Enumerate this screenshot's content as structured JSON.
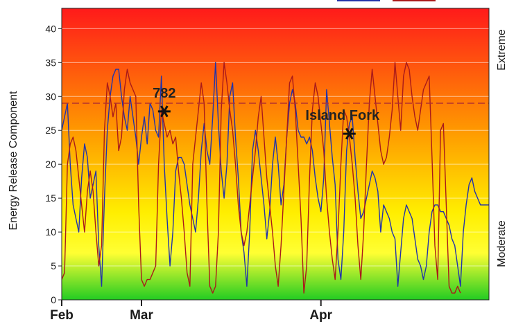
{
  "chart_data": {
    "type": "line",
    "ylabel": "Energy Release Component",
    "ylim": [
      0,
      43
    ],
    "yticks": [
      0,
      5,
      10,
      15,
      20,
      25,
      30,
      35,
      40
    ],
    "xticks": [
      {
        "label": "Feb",
        "day": 0
      },
      {
        "label": "Mar",
        "day": 28
      },
      {
        "label": "Apr",
        "day": 91
      }
    ],
    "xlim": [
      0,
      150
    ],
    "gradient_colors": [
      "#ff1a1a",
      "#ff9900",
      "#ffee00",
      "#ffff33",
      "#22cc22"
    ],
    "background_scale_labels": {
      "top": "Extreme",
      "bottom": "Moderate"
    },
    "reference_line": {
      "value": 29,
      "color": "#b03030"
    },
    "annotations": [
      {
        "text": "782",
        "marker_x": 36,
        "marker_y": 27.8
      },
      {
        "text": "Island Fork",
        "marker_x": 101,
        "marker_y": 24.5
      }
    ],
    "series": [
      {
        "color": "#2233aa",
        "points": [
          [
            0,
            25
          ],
          [
            2,
            29
          ],
          [
            3,
            20
          ],
          [
            4,
            14
          ],
          [
            5,
            12
          ],
          [
            6,
            10
          ],
          [
            7,
            18
          ],
          [
            8,
            23
          ],
          [
            9,
            21
          ],
          [
            10,
            15
          ],
          [
            11,
            17
          ],
          [
            12,
            19
          ],
          [
            13,
            8
          ],
          [
            14,
            2
          ],
          [
            15,
            15
          ],
          [
            16,
            25
          ],
          [
            17,
            30
          ],
          [
            18,
            33
          ],
          [
            19,
            34
          ],
          [
            20,
            34
          ],
          [
            21,
            30
          ],
          [
            22,
            27
          ],
          [
            23,
            25
          ],
          [
            24,
            30
          ],
          [
            25,
            27
          ],
          [
            26,
            24
          ],
          [
            27,
            20
          ],
          [
            28,
            24
          ],
          [
            29,
            27
          ],
          [
            30,
            23
          ],
          [
            31,
            29
          ],
          [
            32,
            28
          ],
          [
            33,
            25
          ],
          [
            34,
            24
          ],
          [
            35,
            33
          ],
          [
            36,
            20
          ],
          [
            37,
            12
          ],
          [
            38,
            5
          ],
          [
            39,
            10
          ],
          [
            40,
            19
          ],
          [
            41,
            21
          ],
          [
            42,
            21
          ],
          [
            43,
            20
          ],
          [
            44,
            17
          ],
          [
            45,
            14
          ],
          [
            46,
            12
          ],
          [
            47,
            10
          ],
          [
            48,
            15
          ],
          [
            49,
            22
          ],
          [
            50,
            26
          ],
          [
            51,
            22
          ],
          [
            52,
            20
          ],
          [
            53,
            27
          ],
          [
            54,
            35
          ],
          [
            55,
            26
          ],
          [
            56,
            19
          ],
          [
            57,
            15
          ],
          [
            58,
            20
          ],
          [
            59,
            30
          ],
          [
            60,
            32
          ],
          [
            61,
            24
          ],
          [
            62,
            18
          ],
          [
            63,
            10
          ],
          [
            64,
            7
          ],
          [
            65,
            2
          ],
          [
            66,
            10
          ],
          [
            67,
            22
          ],
          [
            68,
            25
          ],
          [
            69,
            22
          ],
          [
            70,
            18
          ],
          [
            71,
            14
          ],
          [
            72,
            9
          ],
          [
            73,
            13
          ],
          [
            74,
            20
          ],
          [
            75,
            24
          ],
          [
            76,
            20
          ],
          [
            77,
            14
          ],
          [
            78,
            17
          ],
          [
            79,
            24
          ],
          [
            80,
            29
          ],
          [
            81,
            31
          ],
          [
            82,
            29
          ],
          [
            83,
            25
          ],
          [
            84,
            24
          ],
          [
            85,
            24
          ],
          [
            86,
            23
          ],
          [
            87,
            24
          ],
          [
            88,
            22
          ],
          [
            89,
            18
          ],
          [
            90,
            15
          ],
          [
            91,
            13
          ],
          [
            92,
            18
          ],
          [
            93,
            31
          ],
          [
            94,
            26
          ],
          [
            95,
            21
          ],
          [
            96,
            17
          ],
          [
            97,
            6
          ],
          [
            98,
            3
          ],
          [
            99,
            10
          ],
          [
            100,
            22
          ],
          [
            101,
            26
          ],
          [
            102,
            27
          ],
          [
            103,
            21
          ],
          [
            104,
            16
          ],
          [
            105,
            12
          ],
          [
            106,
            13
          ],
          [
            107,
            15
          ],
          [
            108,
            17
          ],
          [
            109,
            19
          ],
          [
            110,
            18
          ],
          [
            111,
            16
          ],
          [
            112,
            10
          ],
          [
            113,
            14
          ],
          [
            114,
            13
          ],
          [
            115,
            12
          ],
          [
            116,
            10
          ],
          [
            117,
            9
          ],
          [
            118,
            2
          ],
          [
            119,
            7
          ],
          [
            120,
            12
          ],
          [
            121,
            14
          ],
          [
            122,
            13
          ],
          [
            123,
            12
          ],
          [
            124,
            9
          ],
          [
            125,
            6
          ],
          [
            126,
            5
          ],
          [
            127,
            3
          ],
          [
            128,
            5
          ],
          [
            129,
            10
          ],
          [
            130,
            13
          ],
          [
            131,
            14
          ],
          [
            132,
            14
          ],
          [
            133,
            13
          ],
          [
            134,
            13
          ],
          [
            135,
            12
          ],
          [
            136,
            11
          ],
          [
            137,
            9
          ],
          [
            138,
            8
          ],
          [
            139,
            5
          ],
          [
            140,
            2
          ],
          [
            141,
            10
          ],
          [
            142,
            14
          ],
          [
            143,
            17
          ],
          [
            144,
            18
          ],
          [
            145,
            16
          ],
          [
            146,
            15
          ],
          [
            147,
            14
          ],
          [
            148,
            14
          ],
          [
            149,
            14
          ],
          [
            150,
            14
          ]
        ]
      },
      {
        "color": "#aa1a1a",
        "points": [
          [
            0,
            3
          ],
          [
            1,
            4
          ],
          [
            2,
            20
          ],
          [
            3,
            23
          ],
          [
            4,
            24
          ],
          [
            5,
            22
          ],
          [
            6,
            18
          ],
          [
            7,
            14
          ],
          [
            8,
            10
          ],
          [
            9,
            16
          ],
          [
            10,
            19
          ],
          [
            11,
            16
          ],
          [
            12,
            10
          ],
          [
            13,
            5
          ],
          [
            14,
            8
          ],
          [
            15,
            25
          ],
          [
            16,
            32
          ],
          [
            17,
            30
          ],
          [
            18,
            27
          ],
          [
            19,
            29
          ],
          [
            20,
            22
          ],
          [
            21,
            24
          ],
          [
            22,
            31
          ],
          [
            23,
            34
          ],
          [
            24,
            32
          ],
          [
            25,
            31
          ],
          [
            26,
            30
          ],
          [
            27,
            14
          ],
          [
            28,
            3
          ],
          [
            29,
            2
          ],
          [
            30,
            3
          ],
          [
            31,
            3
          ],
          [
            32,
            4
          ],
          [
            33,
            5
          ],
          [
            34,
            20
          ],
          [
            35,
            28
          ],
          [
            36,
            26
          ],
          [
            37,
            24
          ],
          [
            38,
            25
          ],
          [
            39,
            23
          ],
          [
            40,
            24
          ],
          [
            41,
            19
          ],
          [
            42,
            15
          ],
          [
            43,
            10
          ],
          [
            44,
            4
          ],
          [
            45,
            2
          ],
          [
            46,
            20
          ],
          [
            47,
            24
          ],
          [
            48,
            28
          ],
          [
            49,
            32
          ],
          [
            50,
            29
          ],
          [
            51,
            14
          ],
          [
            52,
            2
          ],
          [
            53,
            1
          ],
          [
            54,
            2
          ],
          [
            55,
            10
          ],
          [
            56,
            28
          ],
          [
            57,
            35
          ],
          [
            58,
            32
          ],
          [
            59,
            28
          ],
          [
            60,
            25
          ],
          [
            61,
            20
          ],
          [
            62,
            14
          ],
          [
            63,
            10
          ],
          [
            64,
            8
          ],
          [
            65,
            10
          ],
          [
            66,
            14
          ],
          [
            67,
            18
          ],
          [
            68,
            22
          ],
          [
            69,
            27
          ],
          [
            70,
            30
          ],
          [
            71,
            24
          ],
          [
            72,
            18
          ],
          [
            73,
            14
          ],
          [
            74,
            10
          ],
          [
            75,
            5
          ],
          [
            76,
            2
          ],
          [
            77,
            8
          ],
          [
            78,
            16
          ],
          [
            79,
            24
          ],
          [
            80,
            32
          ],
          [
            81,
            33
          ],
          [
            82,
            28
          ],
          [
            83,
            20
          ],
          [
            84,
            12
          ],
          [
            85,
            1
          ],
          [
            86,
            5
          ],
          [
            87,
            18
          ],
          [
            88,
            28
          ],
          [
            89,
            32
          ],
          [
            90,
            30
          ],
          [
            91,
            26
          ],
          [
            92,
            22
          ],
          [
            93,
            15
          ],
          [
            94,
            10
          ],
          [
            95,
            6
          ],
          [
            96,
            3
          ],
          [
            97,
            10
          ],
          [
            98,
            20
          ],
          [
            99,
            28
          ],
          [
            100,
            27
          ],
          [
            101,
            24
          ],
          [
            102,
            20
          ],
          [
            103,
            15
          ],
          [
            104,
            8
          ],
          [
            105,
            3
          ],
          [
            106,
            10
          ],
          [
            107,
            20
          ],
          [
            108,
            29
          ],
          [
            109,
            34
          ],
          [
            110,
            30
          ],
          [
            111,
            26
          ],
          [
            112,
            22
          ],
          [
            113,
            20
          ],
          [
            114,
            21
          ],
          [
            115,
            24
          ],
          [
            116,
            28
          ],
          [
            117,
            35
          ],
          [
            118,
            30
          ],
          [
            119,
            25
          ],
          [
            120,
            33
          ],
          [
            121,
            35
          ],
          [
            122,
            34
          ],
          [
            123,
            30
          ],
          [
            124,
            27
          ],
          [
            125,
            25
          ],
          [
            126,
            28
          ],
          [
            127,
            31
          ],
          [
            128,
            32
          ],
          [
            129,
            33
          ],
          [
            130,
            21
          ],
          [
            131,
            8
          ],
          [
            132,
            3
          ],
          [
            133,
            25
          ],
          [
            134,
            26
          ],
          [
            135,
            14
          ],
          [
            136,
            2
          ],
          [
            137,
            1
          ],
          [
            138,
            1
          ],
          [
            139,
            2
          ],
          [
            140,
            1
          ]
        ]
      }
    ]
  }
}
